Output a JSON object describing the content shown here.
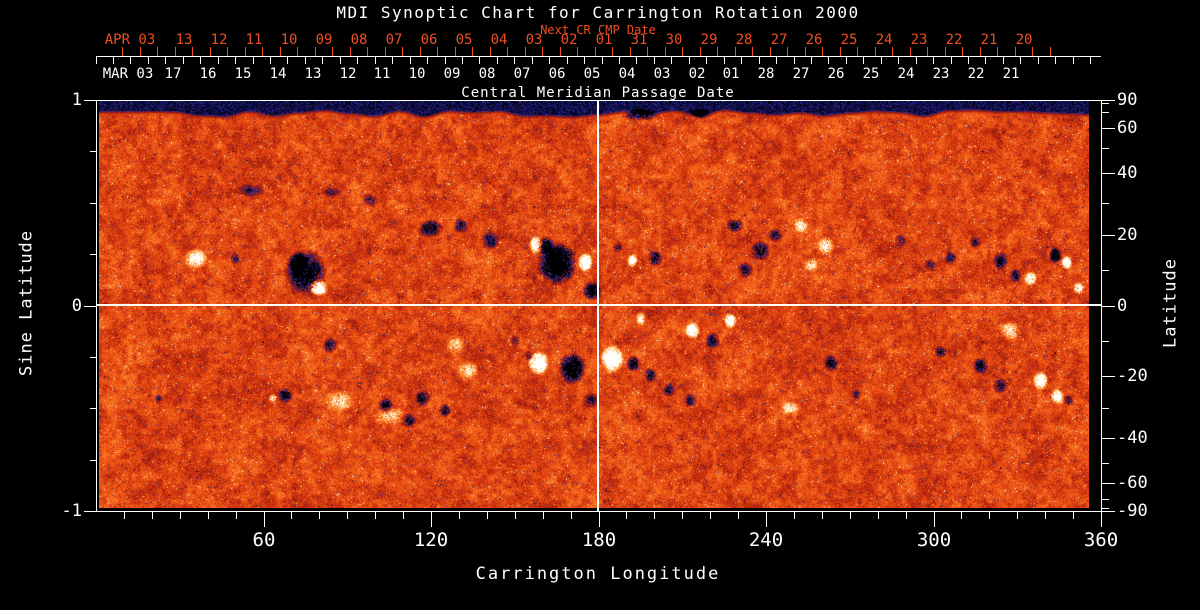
{
  "title": "MDI Synoptic Chart for Carrington Rotation 2000",
  "colors": {
    "background": "#000000",
    "axis": "#ffffff",
    "date_accent": "#f04e20"
  },
  "axes": {
    "top_next": {
      "label": "Next CR CMP Date",
      "prefix": "APR 03",
      "ticks": [
        "13",
        "12",
        "11",
        "10",
        "09",
        "08",
        "07",
        "06",
        "05",
        "04",
        "03",
        "02",
        "01",
        "31",
        "30",
        "29",
        "28",
        "27",
        "26",
        "25",
        "24",
        "23",
        "22",
        "21",
        "20"
      ]
    },
    "top_cmp": {
      "label": "Central Meridian Passage Date",
      "prefix": "MAR 03",
      "ticks": [
        "17",
        "16",
        "15",
        "14",
        "13",
        "12",
        "11",
        "10",
        "09",
        "08",
        "07",
        "06",
        "05",
        "04",
        "03",
        "02",
        "01",
        "28",
        "27",
        "26",
        "25",
        "24",
        "23",
        "22",
        "21"
      ]
    },
    "bottom": {
      "label": "Carrington Longitude",
      "ticks": [
        60,
        120,
        180,
        240,
        300,
        360
      ],
      "minor_step_deg": 10
    },
    "left": {
      "label": "Sine Latitude",
      "ticks": [
        1,
        0,
        -1
      ],
      "minor_step": 0.25
    },
    "right": {
      "label": "Latitude",
      "ticks": [
        90,
        60,
        40,
        20,
        0,
        -20,
        -40,
        -60,
        -90
      ],
      "minor_step_deg": 10
    }
  },
  "chart_data": {
    "type": "heatmap",
    "title": "MDI Synoptic Chart for Carrington Rotation 2000",
    "x_axis": {
      "label": "Carrington Longitude",
      "range": [
        0,
        360
      ],
      "major_ticks": [
        60,
        120,
        180,
        240,
        300,
        360
      ]
    },
    "y_axis": {
      "label": "Sine Latitude",
      "range": [
        -1,
        1
      ],
      "major_ticks": [
        1,
        0,
        -1
      ]
    },
    "y_axis_right": {
      "label": "Latitude",
      "ticks_deg": [
        90,
        60,
        40,
        20,
        0,
        -20,
        -40,
        -60,
        -90
      ],
      "scale": "sine"
    },
    "crosshair": {
      "longitude": 180,
      "sine_latitude": 0
    },
    "data_start_longitude": 1.5,
    "data_end_longitude": 355.5,
    "polar_gap_top_sine_lat": 0.93,
    "quiet_sun_level": 0.52,
    "colormap_stops": [
      [
        0.0,
        0,
        0,
        0
      ],
      [
        0.06,
        5,
        5,
        40
      ],
      [
        0.13,
        45,
        45,
        175
      ],
      [
        0.2,
        75,
        35,
        110
      ],
      [
        0.27,
        115,
        25,
        35
      ],
      [
        0.38,
        170,
        32,
        14
      ],
      [
        0.5,
        222,
        62,
        16
      ],
      [
        0.62,
        246,
        102,
        26
      ],
      [
        0.74,
        252,
        152,
        62
      ],
      [
        0.84,
        254,
        206,
        122
      ],
      [
        0.92,
        255,
        241,
        206
      ],
      [
        1.0,
        255,
        255,
        255
      ]
    ],
    "active_regions_format": "[longitude_deg, sine_latitude, radius_deg, radius_sine, signed_strength] (negative=dark/negative polarity, positive=bright/positive polarity)",
    "active_regions": [
      [
        74.9,
        0.163,
        8,
        0.12,
        -0.75
      ],
      [
        72.4,
        0.212,
        4,
        0.06,
        -0.6
      ],
      [
        79.5,
        0.09,
        3.6,
        0.045,
        1.0
      ],
      [
        35.5,
        0.231,
        4.5,
        0.055,
        0.55
      ],
      [
        49.8,
        0.231,
        2,
        0.03,
        -0.35
      ],
      [
        55.2,
        0.562,
        6,
        0.035,
        -0.3
      ],
      [
        83.8,
        0.552,
        4,
        0.03,
        -0.3
      ],
      [
        98.1,
        0.513,
        3,
        0.035,
        -0.35
      ],
      [
        119.6,
        0.377,
        5,
        0.05,
        -0.55
      ],
      [
        130.4,
        0.392,
        3,
        0.04,
        -0.45
      ],
      [
        141.1,
        0.319,
        3.5,
        0.05,
        -0.45
      ],
      [
        157.6,
        0.299,
        3,
        0.045,
        0.7
      ],
      [
        165.1,
        0.207,
        7.5,
        0.115,
        -0.95
      ],
      [
        160.8,
        0.294,
        4,
        0.05,
        -0.6
      ],
      [
        175.2,
        0.212,
        2.8,
        0.05,
        1.1
      ],
      [
        177.7,
        0.075,
        4,
        0.05,
        -0.7
      ],
      [
        192.0,
        0.221,
        2,
        0.035,
        0.8
      ],
      [
        200.2,
        0.231,
        3,
        0.045,
        -0.55
      ],
      [
        186.7,
        0.285,
        2,
        0.03,
        -0.35
      ],
      [
        228.9,
        0.392,
        3.5,
        0.04,
        -0.45
      ],
      [
        237.8,
        0.27,
        4,
        0.055,
        -0.5
      ],
      [
        232.5,
        0.173,
        3,
        0.045,
        -0.4
      ],
      [
        243.2,
        0.343,
        3,
        0.04,
        -0.35
      ],
      [
        252.2,
        0.392,
        3,
        0.04,
        0.4
      ],
      [
        261.1,
        0.294,
        3.5,
        0.05,
        0.45
      ],
      [
        255.8,
        0.197,
        3,
        0.04,
        0.35
      ],
      [
        288.0,
        0.319,
        2.5,
        0.035,
        -0.3
      ],
      [
        298.7,
        0.197,
        2.5,
        0.035,
        -0.3
      ],
      [
        305.9,
        0.231,
        2.5,
        0.04,
        -0.4
      ],
      [
        314.9,
        0.309,
        2.5,
        0.035,
        -0.35
      ],
      [
        323.8,
        0.221,
        3,
        0.05,
        -0.5
      ],
      [
        329.2,
        0.148,
        2.5,
        0.04,
        -0.45
      ],
      [
        334.6,
        0.134,
        2.5,
        0.04,
        0.6
      ],
      [
        343.5,
        0.246,
        2.5,
        0.04,
        -0.8
      ],
      [
        347.5,
        0.212,
        2,
        0.035,
        0.95
      ],
      [
        351.8,
        0.085,
        2,
        0.035,
        0.6
      ],
      [
        194.9,
        0.93,
        7,
        0.03,
        -0.5
      ],
      [
        216.4,
        0.935,
        4,
        0.025,
        -0.4
      ],
      [
        67.7,
        -0.436,
        3,
        0.04,
        -0.55
      ],
      [
        63.1,
        -0.45,
        1.6,
        0.025,
        0.5
      ],
      [
        22.2,
        -0.45,
        1.5,
        0.02,
        -0.35
      ],
      [
        83.8,
        -0.192,
        3,
        0.04,
        -0.45
      ],
      [
        87.4,
        -0.46,
        6,
        0.06,
        0.3
      ],
      [
        105.3,
        -0.533,
        6,
        0.05,
        0.3
      ],
      [
        103.5,
        -0.484,
        3,
        0.04,
        -0.5
      ],
      [
        111.8,
        -0.557,
        3,
        0.04,
        -0.5
      ],
      [
        116.8,
        -0.45,
        3,
        0.045,
        -0.55
      ],
      [
        125.0,
        -0.509,
        2.5,
        0.035,
        -0.45
      ],
      [
        128.6,
        -0.192,
        4,
        0.06,
        0.3
      ],
      [
        133.2,
        -0.314,
        4,
        0.06,
        0.35
      ],
      [
        150.1,
        -0.168,
        2,
        0.03,
        -0.35
      ],
      [
        154.7,
        -0.241,
        2,
        0.03,
        -0.35
      ],
      [
        158.3,
        -0.275,
        4,
        0.065,
        0.85
      ],
      [
        170.5,
        -0.304,
        5,
        0.085,
        -0.9
      ],
      [
        184.8,
        -0.256,
        4.5,
        0.075,
        0.95
      ],
      [
        192.4,
        -0.28,
        2.5,
        0.045,
        -0.65
      ],
      [
        177.0,
        -0.46,
        3,
        0.04,
        -0.4
      ],
      [
        194.9,
        -0.061,
        2,
        0.04,
        0.45
      ],
      [
        198.5,
        -0.338,
        2.5,
        0.04,
        -0.45
      ],
      [
        204.9,
        -0.411,
        2.5,
        0.035,
        -0.4
      ],
      [
        212.8,
        -0.46,
        2.5,
        0.035,
        -0.4
      ],
      [
        213.5,
        -0.119,
        3,
        0.045,
        0.85
      ],
      [
        227.1,
        -0.071,
        2.5,
        0.04,
        0.8
      ],
      [
        220.7,
        -0.168,
        3,
        0.045,
        -0.55
      ],
      [
        248.6,
        -0.499,
        4,
        0.04,
        0.35
      ],
      [
        262.9,
        -0.28,
        3,
        0.045,
        -0.5
      ],
      [
        272.3,
        -0.431,
        2,
        0.03,
        -0.35
      ],
      [
        327.4,
        -0.119,
        4,
        0.05,
        0.45
      ],
      [
        316.7,
        -0.29,
        3,
        0.045,
        -0.5
      ],
      [
        323.8,
        -0.387,
        3,
        0.045,
        -0.5
      ],
      [
        338.2,
        -0.363,
        3,
        0.05,
        0.8
      ],
      [
        344.2,
        -0.441,
        2.5,
        0.04,
        0.7
      ],
      [
        348.2,
        -0.46,
        2,
        0.03,
        -0.45
      ],
      [
        302.3,
        -0.226,
        2.5,
        0.035,
        -0.4
      ]
    ]
  }
}
